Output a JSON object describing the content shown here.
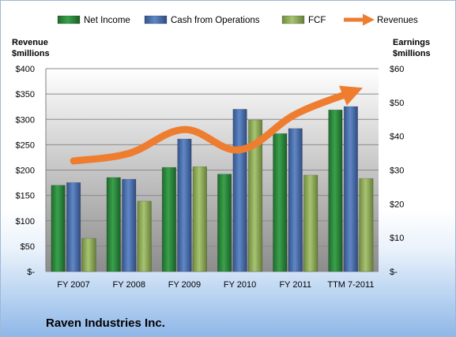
{
  "chart_data": {
    "type": "bar",
    "categories": [
      "FY 2007",
      "FY 2008",
      "FY 2009",
      "FY 2010",
      "FY 2011",
      "TTM 7-2011"
    ],
    "series": [
      {
        "name": "Net Income",
        "axis": "right",
        "color": "#2e8b3e",
        "values": [
          25.5,
          27.8,
          30.8,
          28.8,
          40.8,
          47.8
        ]
      },
      {
        "name": "Cash from Operations",
        "axis": "right",
        "color": "#4a6fb0",
        "values": [
          26.3,
          27.3,
          39.2,
          48.0,
          42.3,
          48.8
        ]
      },
      {
        "name": "FCF",
        "axis": "right",
        "color": "#8fb05a",
        "values": [
          9.8,
          20.8,
          31.0,
          44.8,
          28.5,
          27.5
        ]
      },
      {
        "name": "Revenues",
        "axis": "left",
        "type": "line",
        "color": "#ee7d30",
        "values": [
          218,
          233,
          280,
          240,
          310,
          353
        ]
      }
    ],
    "y_left": {
      "title": "Revenue\n$millions",
      "ylim": [
        0,
        400
      ],
      "ticks": [
        "$-",
        "$50",
        "$100",
        "$150",
        "$200",
        "$250",
        "$300",
        "$350",
        "$400"
      ]
    },
    "y_right": {
      "title": "Earnings\n$millions",
      "ylim": [
        0,
        60
      ],
      "ticks": [
        "$-",
        "$10",
        "$20",
        "$30",
        "$40",
        "$50",
        "$60"
      ]
    },
    "legend_position": "top",
    "gridlines": true,
    "company": "Raven Industries Inc."
  }
}
